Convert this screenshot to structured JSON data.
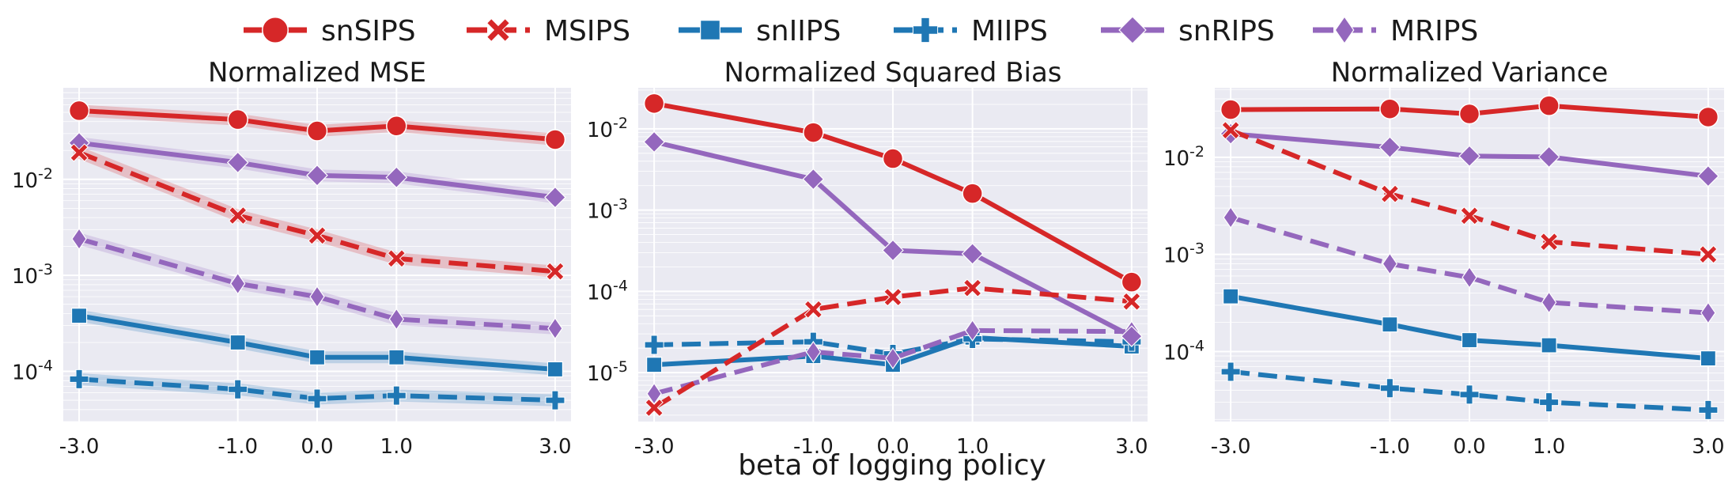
{
  "legend": {
    "placement": "top",
    "entries": [
      {
        "label": "snSIPS",
        "color": "#d62728",
        "dash": "solid",
        "marker": "circle"
      },
      {
        "label": "MSIPS",
        "color": "#d62728",
        "dash": "dashed",
        "marker": "x"
      },
      {
        "label": "snIIPS",
        "color": "#1f77b4",
        "dash": "solid",
        "marker": "square"
      },
      {
        "label": "MIIPS",
        "color": "#1f77b4",
        "dash": "dashed",
        "marker": "plus"
      },
      {
        "label": "snRIPS",
        "color": "#9467bd",
        "dash": "solid",
        "marker": "diamond"
      },
      {
        "label": "MRIPS",
        "color": "#9467bd",
        "dash": "dashed",
        "marker": "thin-diamond"
      }
    ]
  },
  "xlabel": "beta of logging policy",
  "chart_data": [
    {
      "type": "line",
      "title": "Normalized MSE",
      "yscale": "log",
      "ylim": [
        3e-05,
        0.09
      ],
      "xlim": [
        -3.2,
        3.2
      ],
      "x": [
        -3.0,
        -1.0,
        0.0,
        1.0,
        3.0
      ],
      "x_tick_labels": [
        "-3.0",
        "-1.0",
        "0.0",
        "1.0",
        "3.0"
      ],
      "y_ticks": [
        0.0001,
        0.001,
        0.01
      ],
      "y_tick_labels": [
        "10",
        "10",
        "10"
      ],
      "y_tick_exponents": [
        "-4",
        "-3",
        "-2"
      ],
      "grid": true,
      "series": [
        {
          "name": "snSIPS",
          "values": [
            0.052,
            0.042,
            0.032,
            0.036,
            0.026
          ]
        },
        {
          "name": "MSIPS",
          "values": [
            0.019,
            0.0042,
            0.0026,
            0.0015,
            0.0011
          ]
        },
        {
          "name": "snIIPS",
          "values": [
            0.00038,
            0.0002,
            0.00014,
            0.00014,
            0.000105
          ]
        },
        {
          "name": "MIIPS",
          "values": [
            8.3e-05,
            6.5e-05,
            5.2e-05,
            5.6e-05,
            5e-05
          ]
        },
        {
          "name": "snRIPS",
          "values": [
            0.024,
            0.015,
            0.011,
            0.0105,
            0.0065
          ]
        },
        {
          "name": "MRIPS",
          "values": [
            0.0024,
            0.00082,
            0.0006,
            0.00035,
            0.00028
          ]
        }
      ]
    },
    {
      "type": "line",
      "title": "Normalized Squared Bias",
      "yscale": "log",
      "ylim": [
        2.5e-06,
        0.032
      ],
      "xlim": [
        -3.2,
        3.2
      ],
      "x": [
        -3.0,
        -1.0,
        0.0,
        1.0,
        3.0
      ],
      "x_tick_labels": [
        "-3.0",
        "-1.0",
        "0.0",
        "1.0",
        "3.0"
      ],
      "y_ticks": [
        1e-05,
        0.0001,
        0.001,
        0.01
      ],
      "y_tick_labels": [
        "10",
        "10",
        "10",
        "10"
      ],
      "y_tick_exponents": [
        "-5",
        "-4",
        "-3",
        "-2"
      ],
      "grid": true,
      "series": [
        {
          "name": "snSIPS",
          "values": [
            0.0205,
            0.009,
            0.0043,
            0.0016,
            0.00013
          ]
        },
        {
          "name": "MSIPS",
          "values": [
            3.7e-06,
            6e-05,
            8.5e-05,
            0.00011,
            7.5e-05
          ]
        },
        {
          "name": "snIIPS",
          "values": [
            1.25e-05,
            1.6e-05,
            1.25e-05,
            2.7e-05,
            2.1e-05
          ]
        },
        {
          "name": "MIIPS",
          "values": [
            2.2e-05,
            2.4e-05,
            1.7e-05,
            2.6e-05,
            2.4e-05
          ]
        },
        {
          "name": "snRIPS",
          "values": [
            0.0069,
            0.0024,
            0.00032,
            0.00029,
            2.8e-05
          ]
        },
        {
          "name": "MRIPS",
          "values": [
            5.5e-06,
            1.8e-05,
            1.5e-05,
            3.3e-05,
            3.2e-05
          ]
        }
      ]
    },
    {
      "type": "line",
      "title": "Normalized Variance",
      "yscale": "log",
      "ylim": [
        1.9e-05,
        0.052
      ],
      "xlim": [
        -3.2,
        3.2
      ],
      "x": [
        -3.0,
        -1.0,
        0.0,
        1.0,
        3.0
      ],
      "x_tick_labels": [
        "-3.0",
        "-1.0",
        "0.0",
        "1.0",
        "3.0"
      ],
      "y_ticks": [
        0.0001,
        0.001,
        0.01
      ],
      "y_tick_labels": [
        "10",
        "10",
        "10"
      ],
      "y_tick_exponents": [
        "-4",
        "-3",
        "-2"
      ],
      "grid": true,
      "series": [
        {
          "name": "snSIPS",
          "values": [
            0.031,
            0.0315,
            0.028,
            0.034,
            0.026
          ]
        },
        {
          "name": "MSIPS",
          "values": [
            0.019,
            0.0042,
            0.0025,
            0.00135,
            0.001
          ]
        },
        {
          "name": "snIIPS",
          "values": [
            0.00037,
            0.00019,
            0.000131,
            0.000116,
            8.5e-05
          ]
        },
        {
          "name": "MIIPS",
          "values": [
            6.2e-05,
            4.2e-05,
            3.6e-05,
            3e-05,
            2.5e-05
          ]
        },
        {
          "name": "snRIPS",
          "values": [
            0.0175,
            0.0127,
            0.0103,
            0.0101,
            0.0064
          ]
        },
        {
          "name": "MRIPS",
          "values": [
            0.0024,
            0.0008,
            0.00058,
            0.00032,
            0.00025
          ]
        }
      ]
    }
  ]
}
